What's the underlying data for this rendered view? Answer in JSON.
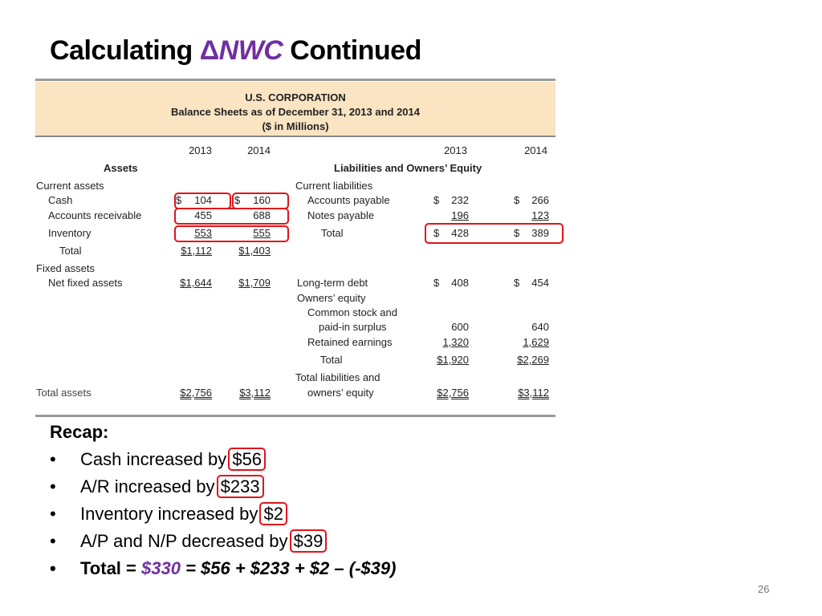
{
  "title": {
    "prefix": "Calculating ",
    "delta": "Δ",
    "nwc": "NWC",
    "suffix": " Continued"
  },
  "balance_sheet": {
    "company": "U.S. CORPORATION",
    "subtitle": "Balance Sheets as of December 31, 2013 and 2014",
    "units": "($ in Millions)",
    "years": [
      "2013",
      "2014"
    ],
    "assets_header": "Assets",
    "liabilities_header": "Liabilities and Owners’ Equity",
    "assets": {
      "current_assets_label": "Current assets",
      "cash": {
        "label": "Cash",
        "y2013": "104",
        "y2014": "160",
        "dollar": "$"
      },
      "ar": {
        "label": "Accounts receivable",
        "y2013": "455",
        "y2014": "688"
      },
      "inventory": {
        "label": "Inventory",
        "y2013": "553",
        "y2014": "555"
      },
      "total_current": {
        "label": "Total",
        "y2013": "$1,112",
        "y2014": "$1,403"
      },
      "fixed_assets_label": "Fixed assets",
      "net_fixed": {
        "label": "Net fixed assets",
        "y2013": "$1,644",
        "y2014": "$1,709"
      },
      "total_assets": {
        "label": "Total assets",
        "y2013": "$2,756",
        "y2014": "$3,112"
      }
    },
    "liabilities": {
      "current_liabilities_label": "Current liabilities",
      "ap": {
        "label": "Accounts payable",
        "y2013": "232",
        "y2014": "266",
        "dollar": "$"
      },
      "np": {
        "label": "Notes payable",
        "y2013": "196",
        "y2014": "123"
      },
      "total_current": {
        "label": "Total",
        "y2013": "428",
        "y2014": "389",
        "dollar": "$"
      },
      "ltd": {
        "label": "Long-term debt",
        "y2013": "408",
        "y2014": "454",
        "dollar": "$"
      },
      "owners_equity_label": "Owners’ equity",
      "common_stock_1": "Common stock and",
      "common_stock_2": "paid-in surplus",
      "common_stock": {
        "y2013": "600",
        "y2014": "640"
      },
      "retained": {
        "label": "Retained earnings",
        "y2013": "1,320",
        "y2014": "1,629"
      },
      "total_equity": {
        "label": "Total",
        "y2013": "$1,920",
        "y2014": "$2,269"
      },
      "total_le_1": "Total liabilities and",
      "total_le_2": "owners’ equity",
      "total_le": {
        "y2013": "$2,756",
        "y2014": "$3,112"
      }
    }
  },
  "recap": {
    "heading": "Recap:",
    "bullet": "•",
    "items": [
      {
        "text": "Cash increased by ",
        "amount": "$56"
      },
      {
        "text": "A/R increased by ",
        "amount": "$233"
      },
      {
        "text": "Inventory increased by ",
        "amount": "$2"
      },
      {
        "text": "A/P and N/P decreased by ",
        "amount": "$39"
      }
    ],
    "total": {
      "label": "Total = ",
      "value": "$330",
      "rest": " = $56 + $233 + $2 – (-$39)"
    }
  },
  "page_number": "26",
  "colors": {
    "accent": "#7030a0",
    "highlight_box": "#e0141b",
    "header_band": "#fae4c2"
  }
}
